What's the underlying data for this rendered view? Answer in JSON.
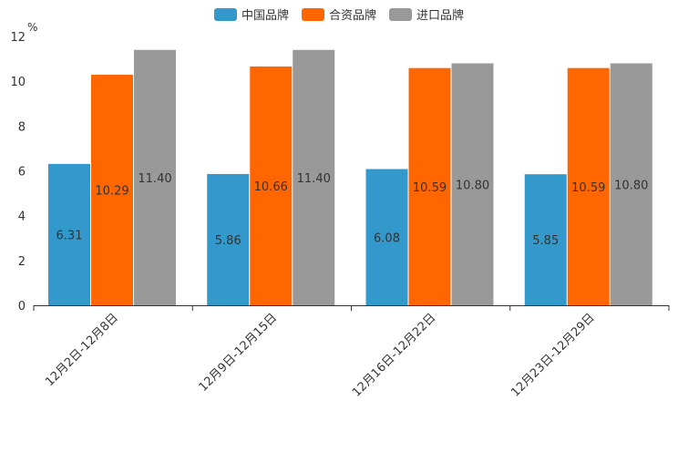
{
  "chart_data": {
    "type": "bar",
    "title": "",
    "ylabel": "%",
    "xlabel": "",
    "ylim": [
      0,
      12
    ],
    "yticks": [
      0,
      2,
      4,
      6,
      8,
      10,
      12
    ],
    "grid": false,
    "legend_position": "top-center",
    "categories": [
      "12月2日-12月8日",
      "12月9日-12月15日",
      "12月16日-12月22日",
      "12月23日-12月29日"
    ],
    "series": [
      {
        "name": "中国品牌",
        "color": "#3399cc",
        "values": [
          6.31,
          5.86,
          6.08,
          5.85
        ],
        "labels": [
          "6.31",
          "5.86",
          "6.08",
          "5.85"
        ]
      },
      {
        "name": "合资品牌",
        "color": "#ff6600",
        "values": [
          10.29,
          10.66,
          10.59,
          10.59
        ],
        "labels": [
          "10.29",
          "10.66",
          "10.59",
          "10.59"
        ]
      },
      {
        "name": "进口品牌",
        "color": "#999999",
        "values": [
          11.4,
          11.4,
          10.8,
          10.8
        ],
        "labels": [
          "11.40",
          "11.40",
          "10.80",
          "10.80"
        ]
      }
    ]
  }
}
